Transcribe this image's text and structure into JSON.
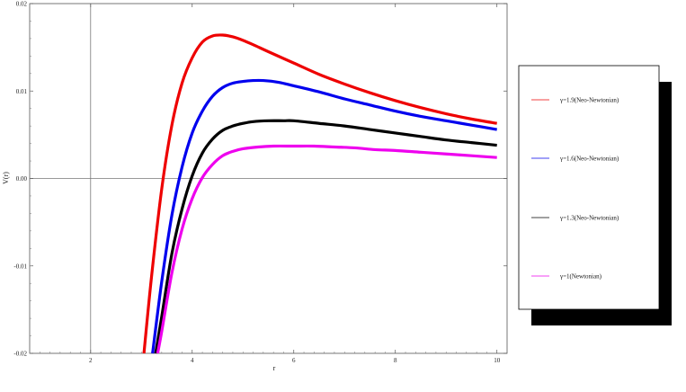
{
  "chart_data": {
    "type": "line",
    "title": "",
    "xlabel": "r",
    "ylabel": "V(r)",
    "xlim": [
      0.8,
      10.2
    ],
    "ylim": [
      -0.02,
      0.02
    ],
    "xticks": [
      2,
      4,
      6,
      8,
      10
    ],
    "yticks": [
      -0.02,
      -0.01,
      0.0,
      0.01,
      0.02
    ],
    "ytick_labels": [
      "-0.02",
      "-0.01",
      "0.00",
      "0.01",
      "0.02"
    ],
    "axis_origin": [
      2,
      0
    ],
    "grid": false,
    "legend_position": "right",
    "series": [
      {
        "name": "γ=1.9(Neo-Newtonian)",
        "color": "#ee0000",
        "x": [
          3.05,
          3.2,
          3.4,
          3.6,
          3.8,
          4.0,
          4.2,
          4.4,
          4.6,
          4.8,
          5.0,
          5.2,
          5.5,
          6.0,
          6.5,
          7.0,
          7.5,
          8.0,
          8.5,
          9.0,
          9.5,
          10.0
        ],
        "y": [
          -0.02,
          -0.0112,
          -0.0012,
          0.0061,
          0.0109,
          0.0138,
          0.0156,
          0.0163,
          0.0164,
          0.0162,
          0.0158,
          0.0153,
          0.0145,
          0.0132,
          0.0119,
          0.0108,
          0.0098,
          0.0089,
          0.0081,
          0.0074,
          0.0068,
          0.0063
        ]
      },
      {
        "name": "γ=1.6(Neo-Newtonian)",
        "color": "#0000ee",
        "x": [
          3.22,
          3.4,
          3.6,
          3.8,
          4.0,
          4.2,
          4.4,
          4.6,
          4.8,
          5.0,
          5.2,
          5.4,
          5.7,
          6.0,
          6.5,
          7.0,
          7.5,
          8.0,
          8.5,
          9.0,
          9.5,
          10.0
        ],
        "y": [
          -0.02,
          -0.0118,
          -0.0042,
          0.0013,
          0.0052,
          0.0077,
          0.0094,
          0.0104,
          0.0109,
          0.0111,
          0.0112,
          0.0112,
          0.011,
          0.0106,
          0.0099,
          0.0091,
          0.0084,
          0.0077,
          0.0071,
          0.0066,
          0.0061,
          0.0056
        ]
      },
      {
        "name": "γ=1.3(Neo-Newtonian)",
        "color": "#000000",
        "x": [
          3.28,
          3.4,
          3.6,
          3.8,
          4.0,
          4.2,
          4.4,
          4.6,
          4.8,
          5.0,
          5.2,
          5.5,
          5.8,
          6.0,
          6.5,
          7.0,
          7.5,
          8.0,
          8.5,
          9.0,
          9.5,
          10.0
        ],
        "y": [
          -0.02,
          -0.0158,
          -0.0086,
          -0.0035,
          0.0003,
          0.0029,
          0.0045,
          0.0055,
          0.006,
          0.0063,
          0.0065,
          0.0066,
          0.0066,
          0.0066,
          0.0063,
          0.006,
          0.0056,
          0.0052,
          0.0048,
          0.0044,
          0.0041,
          0.0038
        ]
      },
      {
        "name": "γ=1(Newtonian)",
        "color": "#ee00ee",
        "x": [
          3.32,
          3.4,
          3.6,
          3.8,
          4.0,
          4.2,
          4.4,
          4.6,
          4.8,
          5.0,
          5.3,
          5.6,
          6.0,
          6.4,
          6.8,
          7.2,
          7.6,
          8.0,
          8.5,
          9.0,
          9.5,
          10.0
        ],
        "y": [
          -0.02,
          -0.0175,
          -0.0108,
          -0.0058,
          -0.0023,
          0.0001,
          0.0016,
          0.0026,
          0.0031,
          0.0034,
          0.0036,
          0.0037,
          0.0037,
          0.0037,
          0.0036,
          0.0035,
          0.0033,
          0.0032,
          0.003,
          0.0028,
          0.0026,
          0.0024
        ]
      }
    ]
  }
}
